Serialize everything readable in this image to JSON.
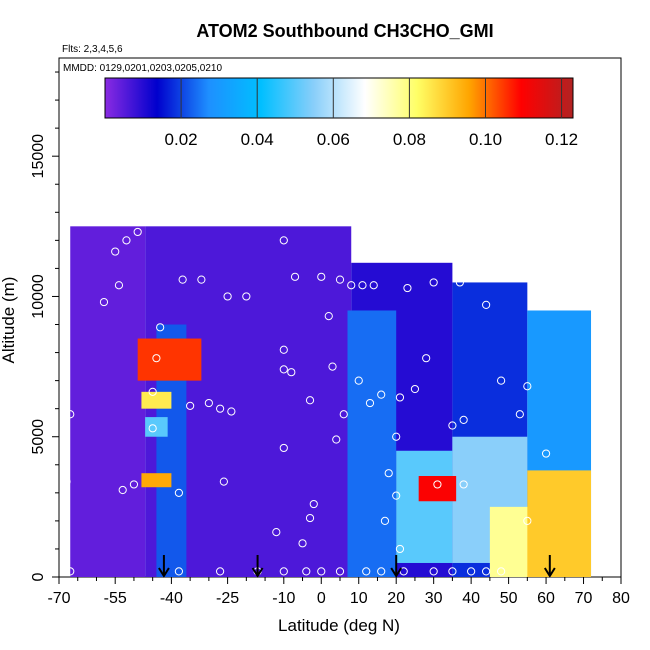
{
  "chart_data": {
    "type": "heatmap",
    "title": "ATOM2 Southbound CH3CHO_GMI",
    "annotations": [
      "Flts: 2,3,4,5,6",
      "MMDD: 0129,0201,0203,0205,0210"
    ],
    "xlabel": "Latitude (deg N)",
    "ylabel": "Altitude (m)",
    "xlim": [
      -70,
      80
    ],
    "ylim": [
      0,
      18500
    ],
    "x_ticks": [
      -70,
      -55,
      -40,
      -25,
      -10,
      0,
      10,
      20,
      30,
      40,
      50,
      60,
      70,
      80
    ],
    "x_tick_labels": [
      "-70",
      "-55",
      "-40",
      "-25",
      "-10",
      "0",
      "10",
      "20",
      "30",
      "40",
      "50",
      "60",
      "70",
      "80"
    ],
    "y_ticks": [
      0,
      5000,
      10000,
      15000
    ],
    "y_tick_labels": [
      "0",
      "5000",
      "10000",
      "15000"
    ],
    "colorbar": {
      "range": [
        0.0,
        0.123
      ],
      "ticks": [
        0.02,
        0.04,
        0.06,
        0.08,
        0.1,
        0.12
      ],
      "tick_labels": [
        "0.02",
        "0.04",
        "0.06",
        "0.08",
        "0.10",
        "0.12"
      ],
      "colors": [
        "#8a2be2",
        "#0000cd",
        "#1e90ff",
        "#00bfff",
        "#87cefa",
        "#ffffff",
        "#ffff66",
        "#ffa500",
        "#ff0000",
        "#b22222"
      ]
    },
    "fields": [
      {
        "lat": [
          -67,
          -47
        ],
        "alt": [
          0,
          12500
        ],
        "value": 0.004
      },
      {
        "lat": [
          -47,
          8
        ],
        "alt": [
          0,
          12500
        ],
        "value": 0.006
      },
      {
        "lat": [
          8,
          35
        ],
        "alt": [
          0,
          11200
        ],
        "value": 0.01
      },
      {
        "lat": [
          35,
          55
        ],
        "alt": [
          0,
          10500
        ],
        "value": 0.018
      },
      {
        "lat": [
          55,
          72
        ],
        "alt": [
          0,
          9500
        ],
        "value": 0.03
      },
      {
        "lat": [
          -44,
          -36
        ],
        "alt": [
          0,
          9000
        ],
        "value": 0.022
      },
      {
        "lat": [
          7,
          20
        ],
        "alt": [
          0,
          9500
        ],
        "value": 0.024
      },
      {
        "lat": [
          20,
          35
        ],
        "alt": [
          500,
          4500
        ],
        "value": 0.05
      },
      {
        "lat": [
          35,
          55
        ],
        "alt": [
          500,
          5000
        ],
        "value": 0.055
      },
      {
        "lat": [
          45,
          58
        ],
        "alt": [
          0,
          2500
        ],
        "value": 0.078
      },
      {
        "lat": [
          55,
          72
        ],
        "alt": [
          0,
          3800
        ],
        "value": 0.09
      },
      {
        "lat": [
          -49,
          -32
        ],
        "alt": [
          7000,
          8500
        ],
        "value": 0.105
      },
      {
        "lat": [
          -48,
          -40
        ],
        "alt": [
          6000,
          6600
        ],
        "value": 0.085
      },
      {
        "lat": [
          -47,
          -41
        ],
        "alt": [
          5000,
          5700
        ],
        "value": 0.05
      },
      {
        "lat": [
          -48,
          -40
        ],
        "alt": [
          3200,
          3700
        ],
        "value": 0.095
      },
      {
        "lat": [
          26,
          36
        ],
        "alt": [
          2700,
          3600
        ],
        "value": 0.11
      }
    ],
    "flight_track_points": [
      {
        "lat": -68,
        "alt": 3400
      },
      {
        "lat": -67,
        "alt": 5800
      },
      {
        "lat": -58,
        "alt": 9800
      },
      {
        "lat": -55,
        "alt": 11600
      },
      {
        "lat": -54,
        "alt": 10400
      },
      {
        "lat": -52,
        "alt": 12000
      },
      {
        "lat": -49,
        "alt": 12300
      },
      {
        "lat": -53,
        "alt": 3100
      },
      {
        "lat": -50,
        "alt": 3300
      },
      {
        "lat": -45,
        "alt": 6600
      },
      {
        "lat": -44,
        "alt": 7800
      },
      {
        "lat": -45,
        "alt": 5300
      },
      {
        "lat": -43,
        "alt": 8900
      },
      {
        "lat": -37,
        "alt": 10600
      },
      {
        "lat": -32,
        "alt": 10600
      },
      {
        "lat": -35,
        "alt": 6100
      },
      {
        "lat": -30,
        "alt": 6200
      },
      {
        "lat": -27,
        "alt": 6000
      },
      {
        "lat": -24,
        "alt": 5900
      },
      {
        "lat": -26,
        "alt": 3400
      },
      {
        "lat": -38,
        "alt": 3000
      },
      {
        "lat": -25,
        "alt": 10000
      },
      {
        "lat": -20,
        "alt": 10000
      },
      {
        "lat": -10,
        "alt": 12000
      },
      {
        "lat": -10,
        "alt": 8100
      },
      {
        "lat": -10,
        "alt": 7400
      },
      {
        "lat": -8,
        "alt": 7300
      },
      {
        "lat": -10,
        "alt": 4600
      },
      {
        "lat": -3,
        "alt": 6300
      },
      {
        "lat": -7,
        "alt": 10700
      },
      {
        "lat": 0,
        "alt": 10700
      },
      {
        "lat": 2,
        "alt": 9300
      },
      {
        "lat": 5,
        "alt": 10600
      },
      {
        "lat": 8,
        "alt": 10400
      },
      {
        "lat": 11,
        "alt": 10400
      },
      {
        "lat": 14,
        "alt": 10400
      },
      {
        "lat": 3,
        "alt": 7500
      },
      {
        "lat": 10,
        "alt": 7000
      },
      {
        "lat": 6,
        "alt": 5800
      },
      {
        "lat": 4,
        "alt": 4900
      },
      {
        "lat": 13,
        "alt": 6200
      },
      {
        "lat": 16,
        "alt": 6500
      },
      {
        "lat": 21,
        "alt": 6400
      },
      {
        "lat": 20,
        "alt": 5000
      },
      {
        "lat": 18,
        "alt": 3700
      },
      {
        "lat": 20,
        "alt": 2900
      },
      {
        "lat": 17,
        "alt": 2000
      },
      {
        "lat": 21,
        "alt": 1000
      },
      {
        "lat": 23,
        "alt": 10300
      },
      {
        "lat": 30,
        "alt": 10500
      },
      {
        "lat": 37,
        "alt": 10500
      },
      {
        "lat": 44,
        "alt": 9700
      },
      {
        "lat": 28,
        "alt": 7800
      },
      {
        "lat": 25,
        "alt": 6700
      },
      {
        "lat": 31,
        "alt": 3300
      },
      {
        "lat": 38,
        "alt": 3300
      },
      {
        "lat": 35,
        "alt": 5400
      },
      {
        "lat": 38,
        "alt": 5600
      },
      {
        "lat": 48,
        "alt": 7000
      },
      {
        "lat": 55,
        "alt": 6800
      },
      {
        "lat": 53,
        "alt": 5800
      },
      {
        "lat": 55,
        "alt": 2000
      },
      {
        "lat": 60,
        "alt": 4400
      },
      {
        "lat": 30,
        "alt": 200
      },
      {
        "lat": 35,
        "alt": 200
      },
      {
        "lat": 40,
        "alt": 200
      },
      {
        "lat": 44,
        "alt": 200
      },
      {
        "lat": 48,
        "alt": 200
      },
      {
        "lat": 22,
        "alt": 200
      },
      {
        "lat": 16,
        "alt": 200
      },
      {
        "lat": 12,
        "alt": 200
      },
      {
        "lat": 5,
        "alt": 200
      },
      {
        "lat": 0,
        "alt": 200
      },
      {
        "lat": -4,
        "alt": 200
      },
      {
        "lat": -10,
        "alt": 200
      },
      {
        "lat": -17,
        "alt": 200
      },
      {
        "lat": -27,
        "alt": 200
      },
      {
        "lat": -38,
        "alt": 200
      },
      {
        "lat": -67,
        "alt": 200
      },
      {
        "lat": -2,
        "alt": 2600
      },
      {
        "lat": -3,
        "alt": 2100
      },
      {
        "lat": -12,
        "alt": 1600
      },
      {
        "lat": -5,
        "alt": 1200
      }
    ],
    "flight_marker_latitudes": [
      -42,
      -17,
      20,
      61
    ]
  }
}
